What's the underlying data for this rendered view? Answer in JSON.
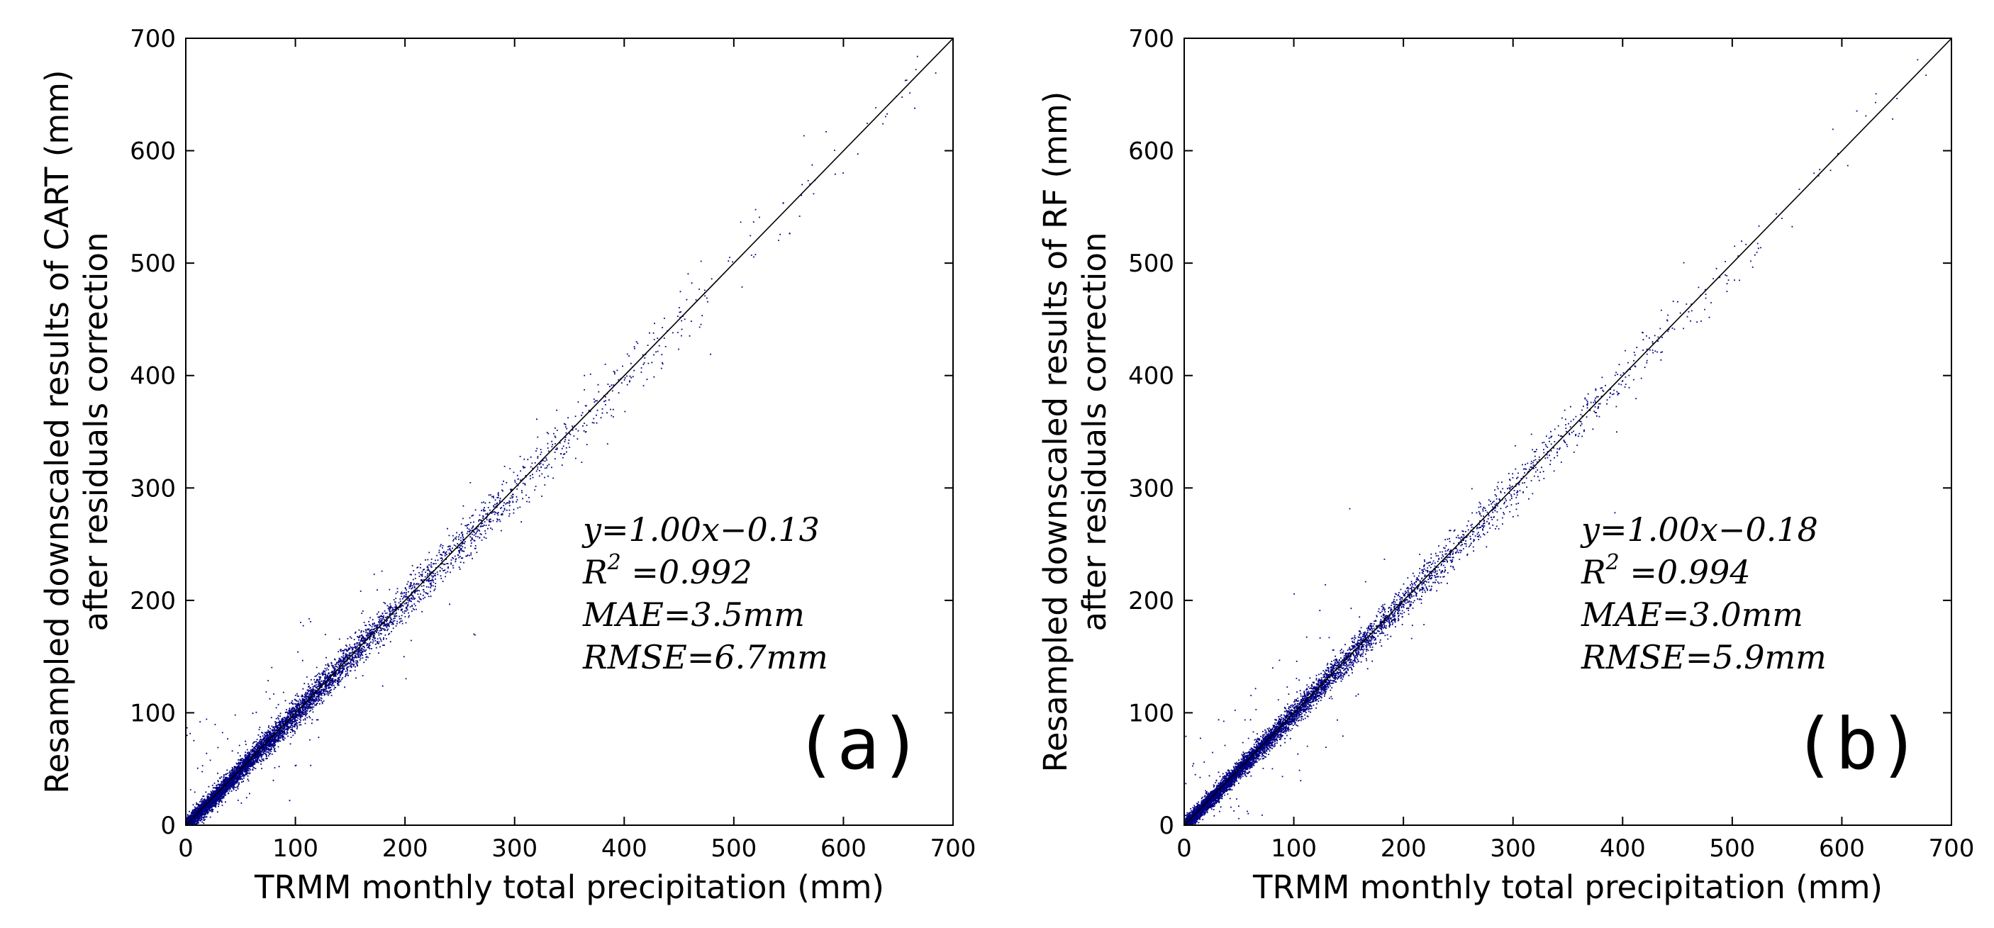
{
  "chart_data": [
    {
      "type": "scatter",
      "panel_label": "(a)",
      "xlabel": "TRMM monthly total precipitation (mm)",
      "ylabel_line1": "Resampled downscaled results of CART (mm)",
      "ylabel_line2": "after residuals correction",
      "xlim": [
        0,
        700
      ],
      "ylim": [
        0,
        700
      ],
      "xticks": [
        "0",
        "100",
        "200",
        "300",
        "400",
        "500",
        "600",
        "700"
      ],
      "yticks": [
        "0",
        "100",
        "200",
        "300",
        "400",
        "500",
        "600",
        "700"
      ],
      "fit": {
        "slope": 1.0,
        "intercept": -0.13
      },
      "stats": {
        "equation": "y=1.00x−0.13",
        "r2_label": "R",
        "r2_sup": "2",
        "r2_value": " =0.992",
        "mae": "MAE=3.5mm",
        "rmse": "RMSE=6.7mm"
      },
      "point_color": "#00007f",
      "scatter_sd": 6.7
    },
    {
      "type": "scatter",
      "panel_label": "(b)",
      "xlabel": "TRMM monthly total precipitation (mm)",
      "ylabel_line1": "Resampled downscaled results of RF (mm)",
      "ylabel_line2": "after residuals correction",
      "xlim": [
        0,
        700
      ],
      "ylim": [
        0,
        700
      ],
      "xticks": [
        "0",
        "100",
        "200",
        "300",
        "400",
        "500",
        "600",
        "700"
      ],
      "yticks": [
        "0",
        "100",
        "200",
        "300",
        "400",
        "500",
        "600",
        "700"
      ],
      "fit": {
        "slope": 1.0,
        "intercept": -0.18
      },
      "stats": {
        "equation": "y=1.00x−0.18",
        "r2_label": "R",
        "r2_sup": "2",
        "r2_value": " =0.994",
        "mae": "MAE=3.0mm",
        "rmse": "RMSE=5.9mm"
      },
      "point_color": "#00007f",
      "scatter_sd": 5.9
    }
  ]
}
